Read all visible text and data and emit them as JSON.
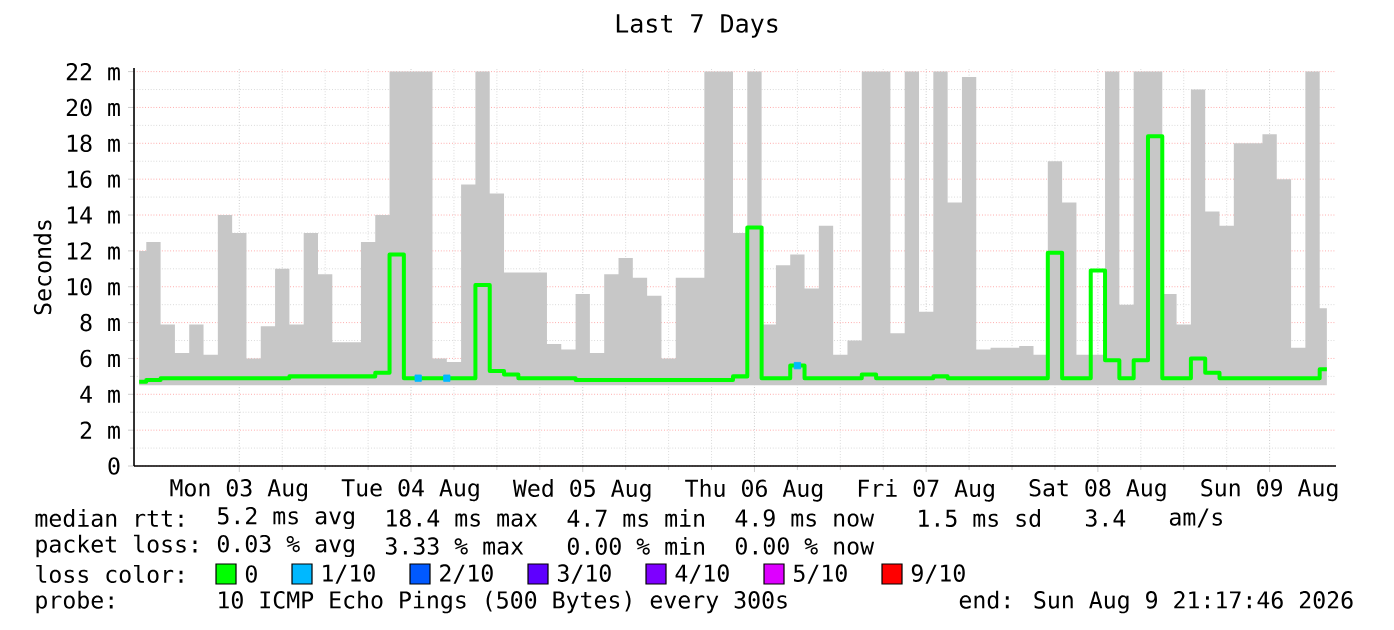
{
  "chart_data": {
    "type": "step",
    "title": "Last 7 Days",
    "ylabel": "Seconds",
    "xlim": [
      "2026-08-02T21:17",
      "2026-08-09T21:17"
    ],
    "ylim": [
      0,
      22.2
    ],
    "xticks": [
      {
        "value": "2026-08-03T12:00",
        "label": "Mon 03 Aug"
      },
      {
        "value": "2026-08-04T12:00",
        "label": "Tue 04 Aug"
      },
      {
        "value": "2026-08-05T12:00",
        "label": "Wed 05 Aug"
      },
      {
        "value": "2026-08-06T12:00",
        "label": "Thu 06 Aug"
      },
      {
        "value": "2026-08-07T12:00",
        "label": "Fri 07 Aug"
      },
      {
        "value": "2026-08-08T12:00",
        "label": "Sat 08 Aug"
      },
      {
        "value": "2026-08-09T12:00",
        "label": "Sun 09 Aug"
      }
    ],
    "yticks": [
      0,
      {
        "value": 2,
        "label": "2 m"
      },
      {
        "value": 4,
        "label": "4 m"
      },
      {
        "value": 6,
        "label": "6 m"
      },
      {
        "value": 8,
        "label": "8 m"
      },
      {
        "value": 10,
        "label": "10 m"
      },
      {
        "value": 12,
        "label": "12 m"
      },
      {
        "value": 14,
        "label": "14 m"
      },
      {
        "value": 16,
        "label": "16 m"
      },
      {
        "value": 18,
        "label": "18 m"
      },
      {
        "value": 20,
        "label": "20 m"
      },
      {
        "value": 22,
        "label": "22 m"
      }
    ],
    "grid": true,
    "legend": "bottom",
    "legend_title": "loss color:",
    "x": [
      "2026-08-02T22:00",
      "2026-08-03T00:00",
      "2026-08-03T02:00",
      "2026-08-03T04:00",
      "2026-08-03T06:00",
      "2026-08-03T08:00",
      "2026-08-03T10:00",
      "2026-08-03T12:00",
      "2026-08-03T14:00",
      "2026-08-03T16:00",
      "2026-08-03T18:00",
      "2026-08-03T20:00",
      "2026-08-03T22:00",
      "2026-08-04T00:00",
      "2026-08-04T02:00",
      "2026-08-04T04:00",
      "2026-08-04T06:00",
      "2026-08-04T08:00",
      "2026-08-04T10:00",
      "2026-08-04T12:00",
      "2026-08-04T14:00",
      "2026-08-04T16:00",
      "2026-08-04T18:00",
      "2026-08-04T20:00",
      "2026-08-04T22:00",
      "2026-08-05T00:00",
      "2026-08-05T02:00",
      "2026-08-05T04:00",
      "2026-08-05T06:00",
      "2026-08-05T08:00",
      "2026-08-05T10:00",
      "2026-08-05T12:00",
      "2026-08-05T14:00",
      "2026-08-05T16:00",
      "2026-08-05T18:00",
      "2026-08-05T20:00",
      "2026-08-05T22:00",
      "2026-08-06T00:00",
      "2026-08-06T02:00",
      "2026-08-06T04:00",
      "2026-08-06T06:00",
      "2026-08-06T08:00",
      "2026-08-06T10:00",
      "2026-08-06T12:00",
      "2026-08-06T14:00",
      "2026-08-06T16:00",
      "2026-08-06T18:00",
      "2026-08-06T20:00",
      "2026-08-06T22:00",
      "2026-08-07T00:00",
      "2026-08-07T02:00",
      "2026-08-07T04:00",
      "2026-08-07T06:00",
      "2026-08-07T08:00",
      "2026-08-07T10:00",
      "2026-08-07T12:00",
      "2026-08-07T14:00",
      "2026-08-07T16:00",
      "2026-08-07T18:00",
      "2026-08-07T20:00",
      "2026-08-07T22:00",
      "2026-08-08T00:00",
      "2026-08-08T02:00",
      "2026-08-08T04:00",
      "2026-08-08T06:00",
      "2026-08-08T08:00",
      "2026-08-08T10:00",
      "2026-08-08T12:00",
      "2026-08-08T14:00",
      "2026-08-08T16:00",
      "2026-08-08T18:00",
      "2026-08-08T20:00",
      "2026-08-08T22:00",
      "2026-08-09T00:00",
      "2026-08-09T02:00",
      "2026-08-09T04:00",
      "2026-08-09T06:00",
      "2026-08-09T08:00",
      "2026-08-09T10:00",
      "2026-08-09T12:00",
      "2026-08-09T14:00",
      "2026-08-09T16:00",
      "2026-08-09T18:00",
      "2026-08-09T20:00"
    ],
    "series": [
      {
        "name": "0",
        "color": "#00ff00",
        "values": [
          4.7,
          4.8,
          4.9,
          4.9,
          4.9,
          4.9,
          4.9,
          4.9,
          4.9,
          4.9,
          4.9,
          5.0,
          5.0,
          5.0,
          5.0,
          5.0,
          5.0,
          5.2,
          11.8,
          4.9,
          4.9,
          4.9,
          4.9,
          4.9,
          10.1,
          5.3,
          5.1,
          4.9,
          4.9,
          4.9,
          4.9,
          4.8,
          4.8,
          4.8,
          4.8,
          4.8,
          4.8,
          4.8,
          4.8,
          4.8,
          4.8,
          4.8,
          5.0,
          13.3,
          4.9,
          4.9,
          5.6,
          4.9,
          4.9,
          4.9,
          4.9,
          5.1,
          4.9,
          4.9,
          4.9,
          4.9,
          5.0,
          4.9,
          4.9,
          4.9,
          4.9,
          4.9,
          4.9,
          4.9,
          11.9,
          4.9,
          4.9,
          10.9,
          5.9,
          4.9,
          5.9,
          18.4,
          4.9,
          4.9,
          6.0,
          5.2,
          4.9,
          4.9,
          4.9,
          4.9,
          4.9,
          4.9,
          4.9,
          5.4
        ],
        "lower": [
          4.5,
          4.5,
          4.5,
          4.5,
          4.5,
          4.5,
          4.5,
          4.5,
          4.5,
          4.5,
          4.5,
          4.5,
          4.5,
          4.5,
          4.5,
          4.5,
          4.5,
          4.5,
          4.5,
          4.5,
          4.5,
          4.5,
          4.5,
          4.5,
          4.5,
          4.5,
          4.5,
          4.5,
          4.5,
          4.5,
          4.5,
          4.5,
          4.5,
          4.5,
          4.5,
          4.5,
          4.5,
          4.5,
          4.5,
          4.5,
          4.5,
          4.5,
          4.5,
          4.5,
          4.5,
          4.5,
          4.5,
          4.5,
          4.5,
          4.5,
          4.5,
          4.5,
          4.5,
          4.5,
          4.5,
          4.5,
          4.5,
          4.5,
          4.5,
          4.5,
          4.5,
          4.5,
          4.5,
          4.5,
          4.5,
          4.5,
          4.5,
          4.5,
          4.5,
          4.5,
          4.5,
          4.5,
          4.5,
          4.5,
          4.5,
          4.5,
          4.5,
          4.5,
          4.5,
          4.5,
          4.5,
          4.5,
          4.5,
          4.5
        ],
        "upper": [
          12,
          12.5,
          7.9,
          6.3,
          7.9,
          6.2,
          14,
          13,
          6,
          7.8,
          11,
          7.9,
          13,
          10.7,
          6.9,
          6.9,
          12.5,
          14,
          22,
          22,
          22,
          6,
          5.8,
          15.7,
          22,
          15.2,
          10.8,
          10.8,
          10.8,
          6.8,
          6.5,
          9.6,
          6.3,
          10.7,
          11.6,
          10.5,
          9.5,
          6,
          10.5,
          10.5,
          22,
          22,
          13,
          22,
          7.9,
          11.2,
          11.8,
          9.9,
          13.4,
          6.2,
          7,
          22,
          22,
          7.4,
          22,
          8.6,
          22,
          14.7,
          21.7,
          6.5,
          6.6,
          6.6,
          6.7,
          6.2,
          17,
          14.7,
          6.2,
          6.2,
          22,
          9,
          22,
          22,
          9.6,
          7.9,
          21,
          14.2,
          13.4,
          18,
          18,
          18.5,
          16,
          6.6,
          22,
          8.8
        ]
      },
      {
        "name": "1/10",
        "color": "#00b8ff",
        "type": "scatter",
        "marker": "square",
        "x": [
          "2026-08-04T13:00",
          "2026-08-04T17:00",
          "2026-08-06T18:00"
        ],
        "values": [
          4.9,
          4.9,
          5.6
        ]
      },
      {
        "name": "2/10",
        "color": "#0059ff",
        "values": [
          null,
          null,
          null,
          null,
          null,
          null,
          null,
          null,
          null,
          null,
          null,
          null,
          null,
          null,
          null,
          null,
          null,
          null,
          null,
          null,
          null,
          null,
          null,
          null,
          null,
          null,
          null,
          null,
          null,
          null,
          null,
          null,
          null,
          null,
          null,
          null,
          null,
          null,
          null,
          null,
          null,
          null,
          null,
          null,
          null,
          null,
          null,
          null,
          null,
          null,
          null,
          null,
          null,
          null,
          null,
          null,
          null,
          null,
          null,
          null,
          null,
          null,
          null,
          null,
          null,
          null,
          null,
          null,
          null,
          null,
          null,
          null,
          null,
          null,
          null,
          null,
          null,
          null,
          null,
          null,
          null,
          null,
          null,
          null
        ]
      },
      {
        "name": "3/10",
        "color": "#5e00ff",
        "values": [
          null,
          null,
          null,
          null,
          null,
          null,
          null,
          null,
          null,
          null,
          null,
          null,
          null,
          null,
          null,
          null,
          null,
          null,
          null,
          null,
          null,
          null,
          null,
          null,
          null,
          null,
          null,
          null,
          null,
          null,
          null,
          null,
          null,
          null,
          null,
          null,
          null,
          null,
          null,
          null,
          null,
          null,
          null,
          null,
          null,
          null,
          null,
          null,
          null,
          null,
          null,
          null,
          null,
          null,
          null,
          null,
          null,
          null,
          null,
          null,
          null,
          null,
          null,
          null,
          null,
          null,
          null,
          null,
          null,
          null,
          null,
          null,
          null,
          null,
          null,
          null,
          null,
          null,
          null,
          null,
          null,
          null,
          null,
          null
        ]
      },
      {
        "name": "4/10",
        "color": "#7e00ff",
        "values": [
          null,
          null,
          null,
          null,
          null,
          null,
          null,
          null,
          null,
          null,
          null,
          null,
          null,
          null,
          null,
          null,
          null,
          null,
          null,
          null,
          null,
          null,
          null,
          null,
          null,
          null,
          null,
          null,
          null,
          null,
          null,
          null,
          null,
          null,
          null,
          null,
          null,
          null,
          null,
          null,
          null,
          null,
          null,
          null,
          null,
          null,
          null,
          null,
          null,
          null,
          null,
          null,
          null,
          null,
          null,
          null,
          null,
          null,
          null,
          null,
          null,
          null,
          null,
          null,
          null,
          null,
          null,
          null,
          null,
          null,
          null,
          null,
          null,
          null,
          null,
          null,
          null,
          null,
          null,
          null,
          null,
          null,
          null,
          null
        ]
      },
      {
        "name": "5/10",
        "color": "#dd00ff",
        "values": [
          null,
          null,
          null,
          null,
          null,
          null,
          null,
          null,
          null,
          null,
          null,
          null,
          null,
          null,
          null,
          null,
          null,
          null,
          null,
          null,
          null,
          null,
          null,
          null,
          null,
          null,
          null,
          null,
          null,
          null,
          null,
          null,
          null,
          null,
          null,
          null,
          null,
          null,
          null,
          null,
          null,
          null,
          null,
          null,
          null,
          null,
          null,
          null,
          null,
          null,
          null,
          null,
          null,
          null,
          null,
          null,
          null,
          null,
          null,
          null,
          null,
          null,
          null,
          null,
          null,
          null,
          null,
          null,
          null,
          null,
          null,
          null,
          null,
          null,
          null,
          null,
          null,
          null,
          null,
          null,
          null,
          null,
          null,
          null
        ]
      },
      {
        "name": "9/10",
        "color": "#ff0000",
        "values": [
          null,
          null,
          null,
          null,
          null,
          null,
          null,
          null,
          null,
          null,
          null,
          null,
          null,
          null,
          null,
          null,
          null,
          null,
          null,
          null,
          null,
          null,
          null,
          null,
          null,
          null,
          null,
          null,
          null,
          null,
          null,
          null,
          null,
          null,
          null,
          null,
          null,
          null,
          null,
          null,
          null,
          null,
          null,
          null,
          null,
          null,
          null,
          null,
          null,
          null,
          null,
          null,
          null,
          null,
          null,
          null,
          null,
          null,
          null,
          null,
          null,
          null,
          null,
          null,
          null,
          null,
          null,
          null,
          null,
          null,
          null,
          null,
          null,
          null,
          null,
          null,
          null,
          null,
          null,
          null,
          null,
          null,
          null,
          null
        ]
      }
    ],
    "annotations": [
      "median rtt:",
      "5.2 ms avg",
      "18.4 ms max",
      "4.7 ms min",
      "4.9 ms now",
      "1.5 ms sd",
      "3.4",
      "am/s",
      "packet loss:",
      "0.03 % avg",
      "3.33 % max",
      "0.00 % min",
      "0.00 % now",
      "probe:",
      "10 ICMP Echo Pings (500 Bytes) every 300s",
      "end: Sun Aug 9 21:17:46 2026"
    ]
  }
}
